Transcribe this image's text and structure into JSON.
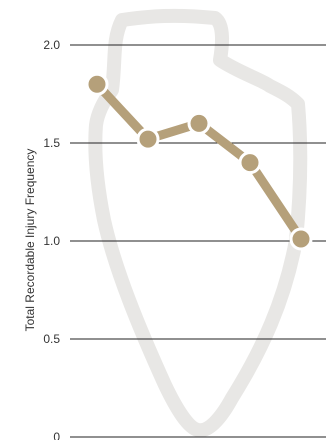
{
  "chart_data": {
    "type": "line",
    "title": "",
    "xlabel": "",
    "ylabel": "Total Recordable Injury Frequency",
    "ylim": [
      0,
      2.0
    ],
    "yticks": [
      {
        "value": 0,
        "label": "0"
      },
      {
        "value": 0.5,
        "label": "0.5"
      },
      {
        "value": 1.0,
        "label": "1.0"
      },
      {
        "value": 1.5,
        "label": "1.5"
      },
      {
        "value": 2.0,
        "label": "2.0"
      }
    ],
    "grid": true,
    "legend": "none",
    "series": [
      {
        "values": [
          1.8,
          1.52,
          1.6,
          1.4,
          1.01
        ]
      }
    ],
    "colors": {
      "line": "#b5a07a",
      "marker_fill": "#b5a07a",
      "marker_stroke": "#ffffff",
      "grid": "#222222",
      "watermark": "#e8e7e5"
    },
    "watermark_icon": "arrowhead-outline-icon"
  }
}
